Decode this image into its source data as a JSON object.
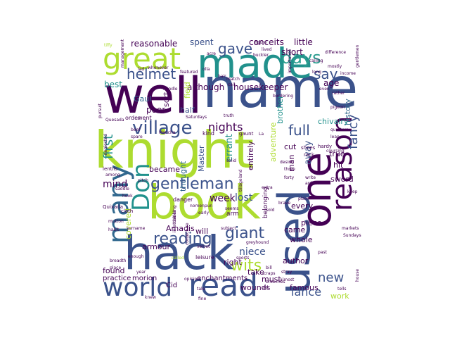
{
  "palette": {
    "background": "#ffffff",
    "dark_purple": "#440154",
    "indigo": "#3b528b",
    "blue": "#31688e",
    "teal": "#21918c",
    "sea_green": "#2a9d8f",
    "green": "#5ec962",
    "lime": "#addc30",
    "yellow": "#d8e219"
  },
  "words": [
    {
      "text": "name",
      "size": 78,
      "color": "#3b528b",
      "rot": 0
    },
    {
      "text": "well",
      "size": 70,
      "color": "#440154",
      "rot": 0
    },
    {
      "text": "knight",
      "size": 72,
      "color": "#addc30",
      "rot": 0
    },
    {
      "text": "book",
      "size": 66,
      "color": "#addc30",
      "rot": 0
    },
    {
      "text": "hack",
      "size": 66,
      "color": "#3b528b",
      "rot": 0
    },
    {
      "text": "made",
      "size": 58,
      "color": "#21918c",
      "rot": 0
    },
    {
      "text": "one",
      "size": 58,
      "color": "#440154",
      "rot": -90
    },
    {
      "text": "used",
      "size": 62,
      "color": "#3b528b",
      "rot": -90
    },
    {
      "text": "great",
      "size": 42,
      "color": "#addc30",
      "rot": 0
    },
    {
      "text": "world",
      "size": 36,
      "color": "#3b528b",
      "rot": 0
    },
    {
      "text": "read",
      "size": 44,
      "color": "#3b528b",
      "rot": 0
    },
    {
      "text": "many",
      "size": 40,
      "color": "#31688e",
      "rot": -90
    },
    {
      "text": "reason",
      "size": 40,
      "color": "#440154",
      "rot": -90
    },
    {
      "text": "Don",
      "size": 34,
      "color": "#21918c",
      "rot": -90
    },
    {
      "text": "village",
      "size": 26,
      "color": "#3b528b",
      "rot": 0
    },
    {
      "text": "gentleman",
      "size": 22,
      "color": "#3b528b",
      "rot": 0
    },
    {
      "text": "reading",
      "size": 22,
      "color": "#3b528b",
      "rot": 0
    },
    {
      "text": "giant",
      "size": 22,
      "color": "#3b528b",
      "rot": 0
    },
    {
      "text": "wits",
      "size": 22,
      "color": "#addc30",
      "rot": 0
    },
    {
      "text": "days",
      "size": 24,
      "color": "#2a9d8f",
      "rot": 0
    },
    {
      "text": "say",
      "size": 20,
      "color": "#3b528b",
      "rot": 0
    },
    {
      "text": "gave",
      "size": 20,
      "color": "#3b528b",
      "rot": 0
    },
    {
      "text": "helmet",
      "size": 20,
      "color": "#3b528b",
      "rot": 0
    },
    {
      "text": "full",
      "size": 20,
      "color": "#3b528b",
      "rot": 0
    },
    {
      "text": "nights",
      "size": 16,
      "color": "#440154",
      "rot": 0
    },
    {
      "text": "fancy",
      "size": 18,
      "color": "#3b528b",
      "rot": -90
    },
    {
      "text": "first",
      "size": 18,
      "color": "#21918c",
      "rot": -90
    },
    {
      "text": "new",
      "size": 18,
      "color": "#3b528b",
      "rot": 0
    },
    {
      "text": "lance",
      "size": 16,
      "color": "#3b528b",
      "rot": 0
    },
    {
      "text": "mind",
      "size": 14,
      "color": "#440154",
      "rot": 0
    },
    {
      "text": "week",
      "size": 14,
      "color": "#440154",
      "rot": 0
    },
    {
      "text": "lost",
      "size": 14,
      "color": "#3b528b",
      "rot": 0
    },
    {
      "text": "niece",
      "size": 14,
      "color": "#3b528b",
      "rot": 0
    },
    {
      "text": "reasonable",
      "size": 12,
      "color": "#440154",
      "rot": 0
    },
    {
      "text": "spent",
      "size": 12,
      "color": "#3b528b",
      "rot": 0
    },
    {
      "text": "conceits",
      "size": 12,
      "color": "#440154",
      "rot": 0
    },
    {
      "text": "little",
      "size": 12,
      "color": "#440154",
      "rot": 0
    },
    {
      "text": "short",
      "size": 12,
      "color": "#440154",
      "rot": 0
    },
    {
      "text": "best",
      "size": 12,
      "color": "#21918c",
      "rot": 0
    },
    {
      "text": "although",
      "size": 12,
      "color": "#440154",
      "rot": 0
    },
    {
      "text": "housekeeper",
      "size": 12,
      "color": "#440154",
      "rot": 0
    },
    {
      "text": "age",
      "size": 12,
      "color": "#440154",
      "rot": 0
    },
    {
      "text": "Gaul",
      "size": 11,
      "color": "#31688e",
      "rot": 0
    },
    {
      "text": "half",
      "size": 11,
      "color": "#3b528b",
      "rot": 0
    },
    {
      "text": "sort",
      "size": 11,
      "color": "#440154",
      "rot": -90
    },
    {
      "text": "field",
      "size": 11,
      "color": "#addc30",
      "rot": -90
    },
    {
      "text": "brother",
      "size": 11,
      "color": "#21918c",
      "rot": -90
    },
    {
      "text": "history",
      "size": 11,
      "color": "#31688e",
      "rot": -90
    },
    {
      "text": "chivalry",
      "size": 11,
      "color": "#21918c",
      "rot": 0
    },
    {
      "text": "poor",
      "size": 12,
      "color": "#440154",
      "rot": 0
    },
    {
      "text": "became",
      "size": 11,
      "color": "#440154",
      "rot": 0
    },
    {
      "text": "thought",
      "size": 11,
      "color": "#31688e",
      "rot": -90
    },
    {
      "text": "Master",
      "size": 11,
      "color": "#3b528b",
      "rot": -90
    },
    {
      "text": "errant",
      "size": 13,
      "color": "#21918c",
      "rot": -90
    },
    {
      "text": "entirely",
      "size": 11,
      "color": "#440154",
      "rot": -90
    },
    {
      "text": "adventure",
      "size": 11,
      "color": "#addc30",
      "rot": -90
    },
    {
      "text": "away",
      "size": 13,
      "color": "#3b528b",
      "rot": -90
    },
    {
      "text": "cut",
      "size": 11,
      "color": "#440154",
      "rot": 0
    },
    {
      "text": "true",
      "size": 11,
      "color": "#440154",
      "rot": 0
    },
    {
      "text": "hit",
      "size": 11,
      "color": "#440154",
      "rot": 0
    },
    {
      "text": "sword",
      "size": 11,
      "color": "#440154",
      "rot": 0
    },
    {
      "text": "man",
      "size": 11,
      "color": "#440154",
      "rot": -90
    },
    {
      "text": "every",
      "size": 11,
      "color": "#440154",
      "rot": 0
    },
    {
      "text": "piece",
      "size": 11,
      "color": "#440154",
      "rot": 0
    },
    {
      "text": "whole",
      "size": 11,
      "color": "#440154",
      "rot": 0
    },
    {
      "text": "came",
      "size": 11,
      "color": "#440154",
      "rot": 0
    },
    {
      "text": "Amadis",
      "size": 11,
      "color": "#440154",
      "rot": 0
    },
    {
      "text": "will",
      "size": 11,
      "color": "#440154",
      "rot": 0
    },
    {
      "text": "armour",
      "size": 11,
      "color": "#440154",
      "rot": 0
    },
    {
      "text": "right",
      "size": 11,
      "color": "#440154",
      "rot": 0
    },
    {
      "text": "author",
      "size": 11,
      "color": "#440154",
      "rot": 0
    },
    {
      "text": "found",
      "size": 11,
      "color": "#440154",
      "rot": 0
    },
    {
      "text": "covered",
      "size": 11,
      "color": "#addc30",
      "rot": -90
    },
    {
      "text": "morion",
      "size": 10,
      "color": "#440154",
      "rot": 0
    },
    {
      "text": "practice",
      "size": 10,
      "color": "#440154",
      "rot": 0
    },
    {
      "text": "Cid",
      "size": 10,
      "color": "#440154",
      "rot": 0
    },
    {
      "text": "enchantments",
      "size": 10,
      "color": "#440154",
      "rot": 0
    },
    {
      "text": "take",
      "size": 11,
      "color": "#440154",
      "rot": 0
    },
    {
      "text": "must",
      "size": 11,
      "color": "#440154",
      "rot": 0
    },
    {
      "text": "wounds",
      "size": 11,
      "color": "#440154",
      "rot": 0
    },
    {
      "text": "famous",
      "size": 11,
      "color": "#440154",
      "rot": 0
    },
    {
      "text": "work",
      "size": 11,
      "color": "#addc30",
      "rot": 0
    },
    {
      "text": "belonging",
      "size": 9,
      "color": "#440154",
      "rot": -90
    },
    {
      "text": "arm",
      "size": 9,
      "color": "#440154",
      "rot": 0
    },
    {
      "text": "leisure",
      "size": 8,
      "color": "#440154",
      "rot": 0
    },
    {
      "text": "Quixada",
      "size": 7,
      "color": "#440154",
      "rot": 0
    },
    {
      "text": "cloth",
      "size": 7,
      "color": "#440154",
      "rot": 0
    },
    {
      "text": "lentils",
      "size": 7,
      "color": "#440154",
      "rot": 0
    },
    {
      "text": "order",
      "size": 8,
      "color": "#440154",
      "rot": 0
    },
    {
      "text": "went",
      "size": 8,
      "color": "#440154",
      "rot": 0
    },
    {
      "text": "danger",
      "size": 8,
      "color": "#440154",
      "rot": 0
    },
    {
      "text": "kind",
      "size": 8,
      "color": "#440154",
      "rot": 0
    },
    {
      "text": "gaunt",
      "size": 7,
      "color": "#440154",
      "rot": 0
    },
    {
      "text": "hardy",
      "size": 7,
      "color": "#440154",
      "rot": 0
    },
    {
      "text": "shoes",
      "size": 7,
      "color": "#440154",
      "rot": 0
    },
    {
      "text": "rack",
      "size": 7,
      "color": "#440154",
      "rot": 0
    },
    {
      "text": "three",
      "size": 6,
      "color": "#440154",
      "rot": 0
    },
    {
      "text": "desire",
      "size": 6,
      "color": "#440154",
      "rot": 0
    },
    {
      "text": "forty",
      "size": 6,
      "color": "#440154",
      "rot": 0
    },
    {
      "text": "write",
      "size": 6,
      "color": "#440154",
      "rot": 0
    },
    {
      "text": "ardour",
      "size": 6,
      "color": "#440154",
      "rot": 0
    },
    {
      "text": "keep",
      "size": 6,
      "color": "#440154",
      "rot": 0
    },
    {
      "text": "plain",
      "size": 6,
      "color": "#440154",
      "rot": 0
    },
    {
      "text": "brave",
      "size": 6,
      "color": "#440154",
      "rot": 0
    },
    {
      "text": "sold",
      "size": 6,
      "color": "#440154",
      "rot": 0
    },
    {
      "text": "subject",
      "size": 6,
      "color": "#440154",
      "rot": 0
    },
    {
      "text": "greyhound",
      "size": 6,
      "color": "#440154",
      "rot": 0
    },
    {
      "text": "breadth",
      "size": 6,
      "color": "#440154",
      "rot": 0
    },
    {
      "text": "place",
      "size": 6,
      "color": "#440154",
      "rot": 0
    },
    {
      "text": "year",
      "size": 6,
      "color": "#440154",
      "rot": 0
    },
    {
      "text": "sports",
      "size": 6,
      "color": "#440154",
      "rot": 0
    },
    {
      "text": "bill",
      "size": 6,
      "color": "#440154",
      "rot": 0
    },
    {
      "text": "scraps",
      "size": 6,
      "color": "#440154",
      "rot": 0
    },
    {
      "text": "almost",
      "size": 6,
      "color": "#440154",
      "rot": 0
    },
    {
      "text": "old",
      "size": 6,
      "color": "#440154",
      "rot": 0
    },
    {
      "text": "breeches",
      "size": 6,
      "color": "#440154",
      "rot": 0
    },
    {
      "text": "fine",
      "size": 6,
      "color": "#440154",
      "rot": 0
    },
    {
      "text": "tale",
      "size": 6,
      "color": "#440154",
      "rot": 0
    },
    {
      "text": "knew",
      "size": 6,
      "color": "#440154",
      "rot": 0
    },
    {
      "text": "house",
      "size": 6,
      "color": "#440154",
      "rot": -90
    },
    {
      "text": "past",
      "size": 6,
      "color": "#440154",
      "rot": 0
    },
    {
      "text": "Sundays",
      "size": 6,
      "color": "#440154",
      "rot": 0
    },
    {
      "text": "markets",
      "size": 6,
      "color": "#440154",
      "rot": 0
    },
    {
      "text": "velvet",
      "size": 6,
      "color": "#440154",
      "rot": 0
    },
    {
      "text": "opinion",
      "size": 6,
      "color": "#440154",
      "rot": 0
    },
    {
      "text": "early",
      "size": 6,
      "color": "#440154",
      "rot": 0
    },
    {
      "text": "called",
      "size": 6,
      "color": "#addc30",
      "rot": 0
    },
    {
      "text": "enough",
      "size": 6,
      "color": "#440154",
      "rot": 0
    },
    {
      "text": "mutton",
      "size": 6,
      "color": "#440154",
      "rot": 0
    },
    {
      "text": "habit",
      "size": 6,
      "color": "#440154",
      "rot": 0
    },
    {
      "text": "among",
      "size": 6,
      "color": "#440154",
      "rot": 0
    },
    {
      "text": "saddle",
      "size": 6,
      "color": "#440154",
      "rot": 0
    },
    {
      "text": "hook",
      "size": 6,
      "color": "#440154",
      "rot": 0
    },
    {
      "text": "pitch",
      "size": 6,
      "color": "#440154",
      "rot": 0
    },
    {
      "text": "surname",
      "size": 6,
      "color": "#440154",
      "rot": 0
    },
    {
      "text": "nomenpun",
      "size": 6,
      "color": "#440154",
      "rot": 0
    },
    {
      "text": "infatuation",
      "size": 6,
      "color": "#440154",
      "rot": -90
    },
    {
      "text": "conjecture",
      "size": 6,
      "color": "#440154",
      "rot": -90
    },
    {
      "text": "thinking",
      "size": 6,
      "color": "#440154",
      "rot": -90
    },
    {
      "text": "tillageland",
      "size": 6,
      "color": "#440154",
      "rot": -90
    },
    {
      "text": "lean",
      "size": 6,
      "color": "#440154",
      "rot": 0
    },
    {
      "text": "coursing",
      "size": 6,
      "color": "#440154",
      "rot": 0
    },
    {
      "text": "quarters",
      "size": 6,
      "color": "#440154",
      "rot": 0
    },
    {
      "text": "pigeon",
      "size": 6,
      "color": "#440154",
      "rot": 0
    },
    {
      "text": "income",
      "size": 6,
      "color": "#440154",
      "rot": 0
    },
    {
      "text": "mostly",
      "size": 6,
      "color": "#440154",
      "rot": 0
    },
    {
      "text": "difference",
      "size": 6,
      "color": "#440154",
      "rot": 0
    },
    {
      "text": "gentlemen",
      "size": 6,
      "color": "#440154",
      "rot": -90
    },
    {
      "text": "lived",
      "size": 6,
      "color": "#440154",
      "rot": 0
    },
    {
      "text": "figure",
      "size": 6,
      "color": "#440154",
      "rot": 0
    },
    {
      "text": "buckler",
      "size": 6,
      "color": "#440154",
      "rot": 0
    },
    {
      "text": "acre",
      "size": 6,
      "color": "#440154",
      "rot": 0
    },
    {
      "text": "importance",
      "size": 6,
      "color": "#440154",
      "rot": -90
    },
    {
      "text": "calling",
      "size": 6,
      "color": "#440154",
      "rot": 0
    },
    {
      "text": "long",
      "size": 6,
      "color": "#440154",
      "rot": 0
    },
    {
      "text": "even",
      "size": 6,
      "color": "#440154",
      "rot": 0
    },
    {
      "text": "rather",
      "size": 6,
      "color": "#440154",
      "rot": 0
    },
    {
      "text": "tiffy",
      "size": 6,
      "color": "#addc30",
      "rot": 0
    },
    {
      "text": "management",
      "size": 6,
      "color": "#440154",
      "rot": -90
    },
    {
      "text": "whenever",
      "size": 6,
      "color": "#440154",
      "rot": 0
    },
    {
      "text": "featured",
      "size": 6,
      "color": "#440154",
      "rot": 0
    },
    {
      "text": "lad",
      "size": 6,
      "color": "#440154",
      "rot": 0
    },
    {
      "text": "olla",
      "size": 6,
      "color": "#440154",
      "rot": 0
    },
    {
      "text": "hair",
      "size": 6,
      "color": "#440154",
      "rot": 0
    },
    {
      "text": "match",
      "size": 6,
      "color": "#440154",
      "rot": 0
    },
    {
      "text": "call",
      "size": 6,
      "color": "#440154",
      "rot": 0
    },
    {
      "text": "handle",
      "size": 6,
      "color": "#440154",
      "rot": 0
    },
    {
      "text": "bordering",
      "size": 6,
      "color": "#440154",
      "rot": 0
    },
    {
      "text": "pursuit",
      "size": 6,
      "color": "#440154",
      "rot": -90
    },
    {
      "text": "Quesada",
      "size": 6,
      "color": "#440154",
      "rot": 0
    },
    {
      "text": "Mancha",
      "size": 6,
      "color": "#440154",
      "rot": 0
    },
    {
      "text": "beef",
      "size": 6,
      "color": "#440154",
      "rot": 0
    },
    {
      "text": "spare",
      "size": 6,
      "color": "#440154",
      "rot": 0
    },
    {
      "text": "neglected",
      "size": 6,
      "color": "#440154",
      "rot": -90
    },
    {
      "text": "La",
      "size": 6,
      "color": "#440154",
      "rot": 0
    },
    {
      "text": "truth",
      "size": 6,
      "color": "#440154",
      "rot": 0
    },
    {
      "text": "Saturdays",
      "size": 6,
      "color": "#440154",
      "rot": 0
    },
    {
      "text": "solid",
      "size": 6,
      "color": "#440154",
      "rot": 0
    },
    {
      "text": "seems",
      "size": 6,
      "color": "#440154",
      "rot": 0
    },
    {
      "text": "extra",
      "size": 6,
      "color": "#440154",
      "rot": 0
    },
    {
      "text": "stray",
      "size": 6,
      "color": "#440154",
      "rot": 0
    },
    {
      "text": "tells",
      "size": 6,
      "color": "#440154",
      "rot": 0
    }
  ]
}
